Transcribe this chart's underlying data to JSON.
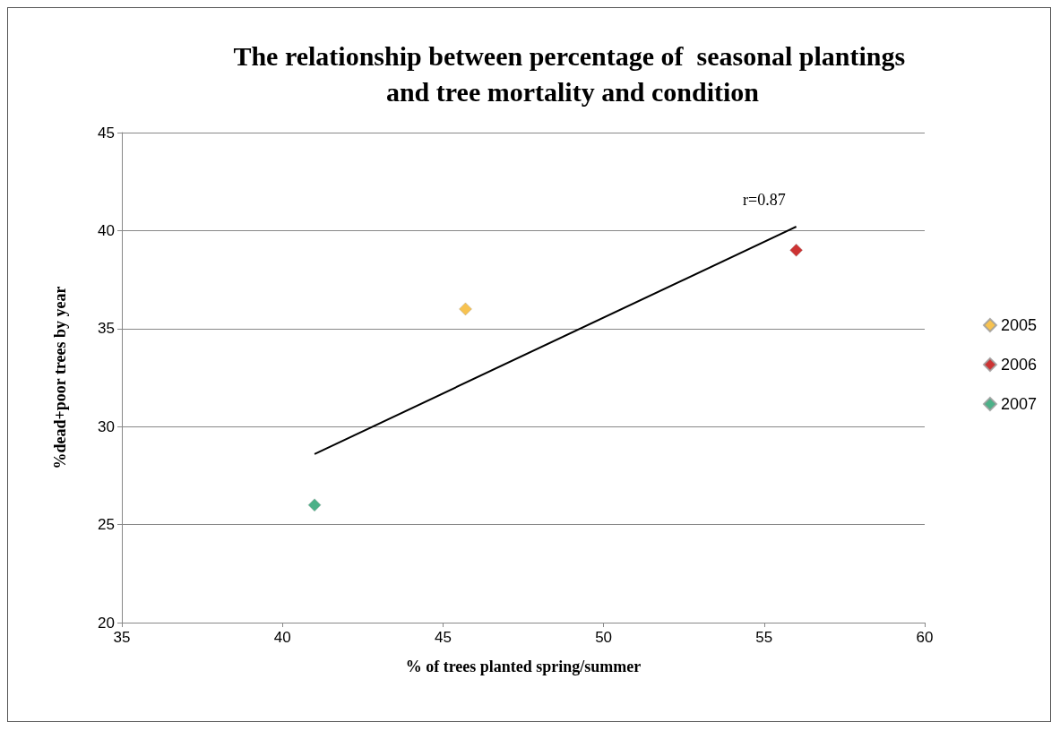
{
  "chart_data": {
    "type": "scatter",
    "title": "The relationship between percentage of  seasonal plantings and tree mortality and condition",
    "xlabel": "% of trees planted spring/summer",
    "ylabel": "%dead+poor trees by year",
    "series": [
      {
        "name": "2005",
        "color": "#f5b324",
        "x": [
          45.7
        ],
        "values": [
          36
        ]
      },
      {
        "name": "2006",
        "color": "#c00000",
        "x": [
          56
        ],
        "values": [
          39
        ]
      },
      {
        "name": "2007",
        "color": "#1f9e6a",
        "x": [
          41
        ],
        "values": [
          26
        ]
      },
      {
        "type": "line",
        "color": "#000000",
        "marker": "none",
        "x": [
          41,
          56
        ],
        "values": [
          28.6,
          40.2
        ]
      }
    ],
    "annotations": [
      "r=0.87"
    ],
    "xlim": [
      35,
      60
    ],
    "xticks": [
      35,
      40,
      45,
      50,
      55,
      60
    ],
    "ylim": [
      20,
      45
    ],
    "yticks": [
      20,
      25,
      30,
      35,
      40,
      45
    ],
    "grid": "y",
    "legend": "right",
    "marker": "diamond"
  }
}
